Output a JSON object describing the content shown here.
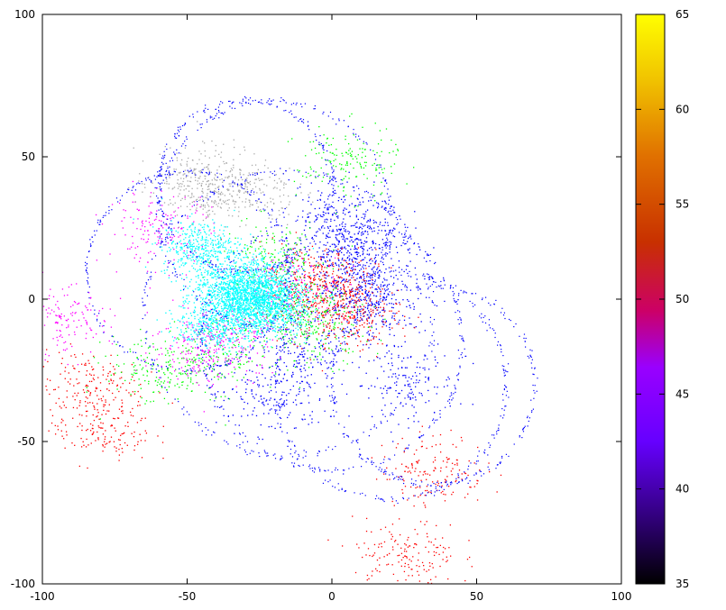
{
  "chart_data": {
    "type": "scatter",
    "title": "",
    "xlabel": "",
    "ylabel": "",
    "xlim": [
      -100,
      100
    ],
    "ylim": [
      -100,
      100
    ],
    "x_ticks": [
      "-100",
      "-50",
      "0",
      "50",
      "100"
    ],
    "y_ticks": [
      "100",
      "50",
      "0",
      "-50",
      "-100"
    ],
    "grid": false,
    "colorbar": {
      "range": [
        35,
        65
      ],
      "ticks": [
        "65",
        "60",
        "55",
        "50",
        "45",
        "40",
        "35"
      ],
      "palette": [
        "#000000",
        "#33007f",
        "#6600ff",
        "#b200ff",
        "#cc0033",
        "#cc3300",
        "#e07000",
        "#f0c000",
        "#ffff00"
      ]
    },
    "series": [
      {
        "color": "#0000ff",
        "description_value": 38,
        "points": [
          [
            5,
            10
          ],
          [
            10,
            20
          ],
          [
            -10,
            -20
          ],
          [
            15,
            -5
          ],
          [
            0,
            30
          ],
          [
            -20,
            -35
          ],
          [
            25,
            -30
          ],
          [
            8,
            18
          ],
          [
            12,
            2
          ]
        ]
      },
      {
        "color": "#ff0000",
        "description_value": 50,
        "points": [
          [
            -3,
            5
          ],
          [
            2,
            -2
          ],
          [
            -8,
            8
          ],
          [
            6,
            -6
          ],
          [
            -85,
            -30
          ],
          [
            -80,
            -45
          ],
          [
            35,
            -60
          ],
          [
            25,
            -90
          ]
        ]
      },
      {
        "color": "#00ff00",
        "description_value": 0,
        "points": [
          [
            -12,
            -5
          ],
          [
            -20,
            15
          ],
          [
            -40,
            -20
          ],
          [
            -60,
            -25
          ],
          [
            5,
            48
          ],
          [
            -5,
            -10
          ]
        ]
      },
      {
        "color": "#ff00ff",
        "description_value": 45,
        "points": [
          [
            -15,
            3
          ],
          [
            -35,
            -12
          ],
          [
            -95,
            -8
          ],
          [
            -60,
            25
          ],
          [
            -45,
            -18
          ]
        ]
      },
      {
        "color": "#00ffff",
        "description_value": 0,
        "points": [
          [
            -25,
            0
          ],
          [
            -30,
            -2
          ],
          [
            -35,
            4
          ],
          [
            -20,
            -3
          ],
          [
            -40,
            -8
          ],
          [
            -28,
            6
          ],
          [
            -45,
            18
          ]
        ]
      },
      {
        "color": "#aaaaaa",
        "description_value": 0,
        "points": [
          [
            -50,
            40
          ],
          [
            -40,
            42
          ],
          [
            -30,
            38
          ]
        ]
      }
    ]
  }
}
